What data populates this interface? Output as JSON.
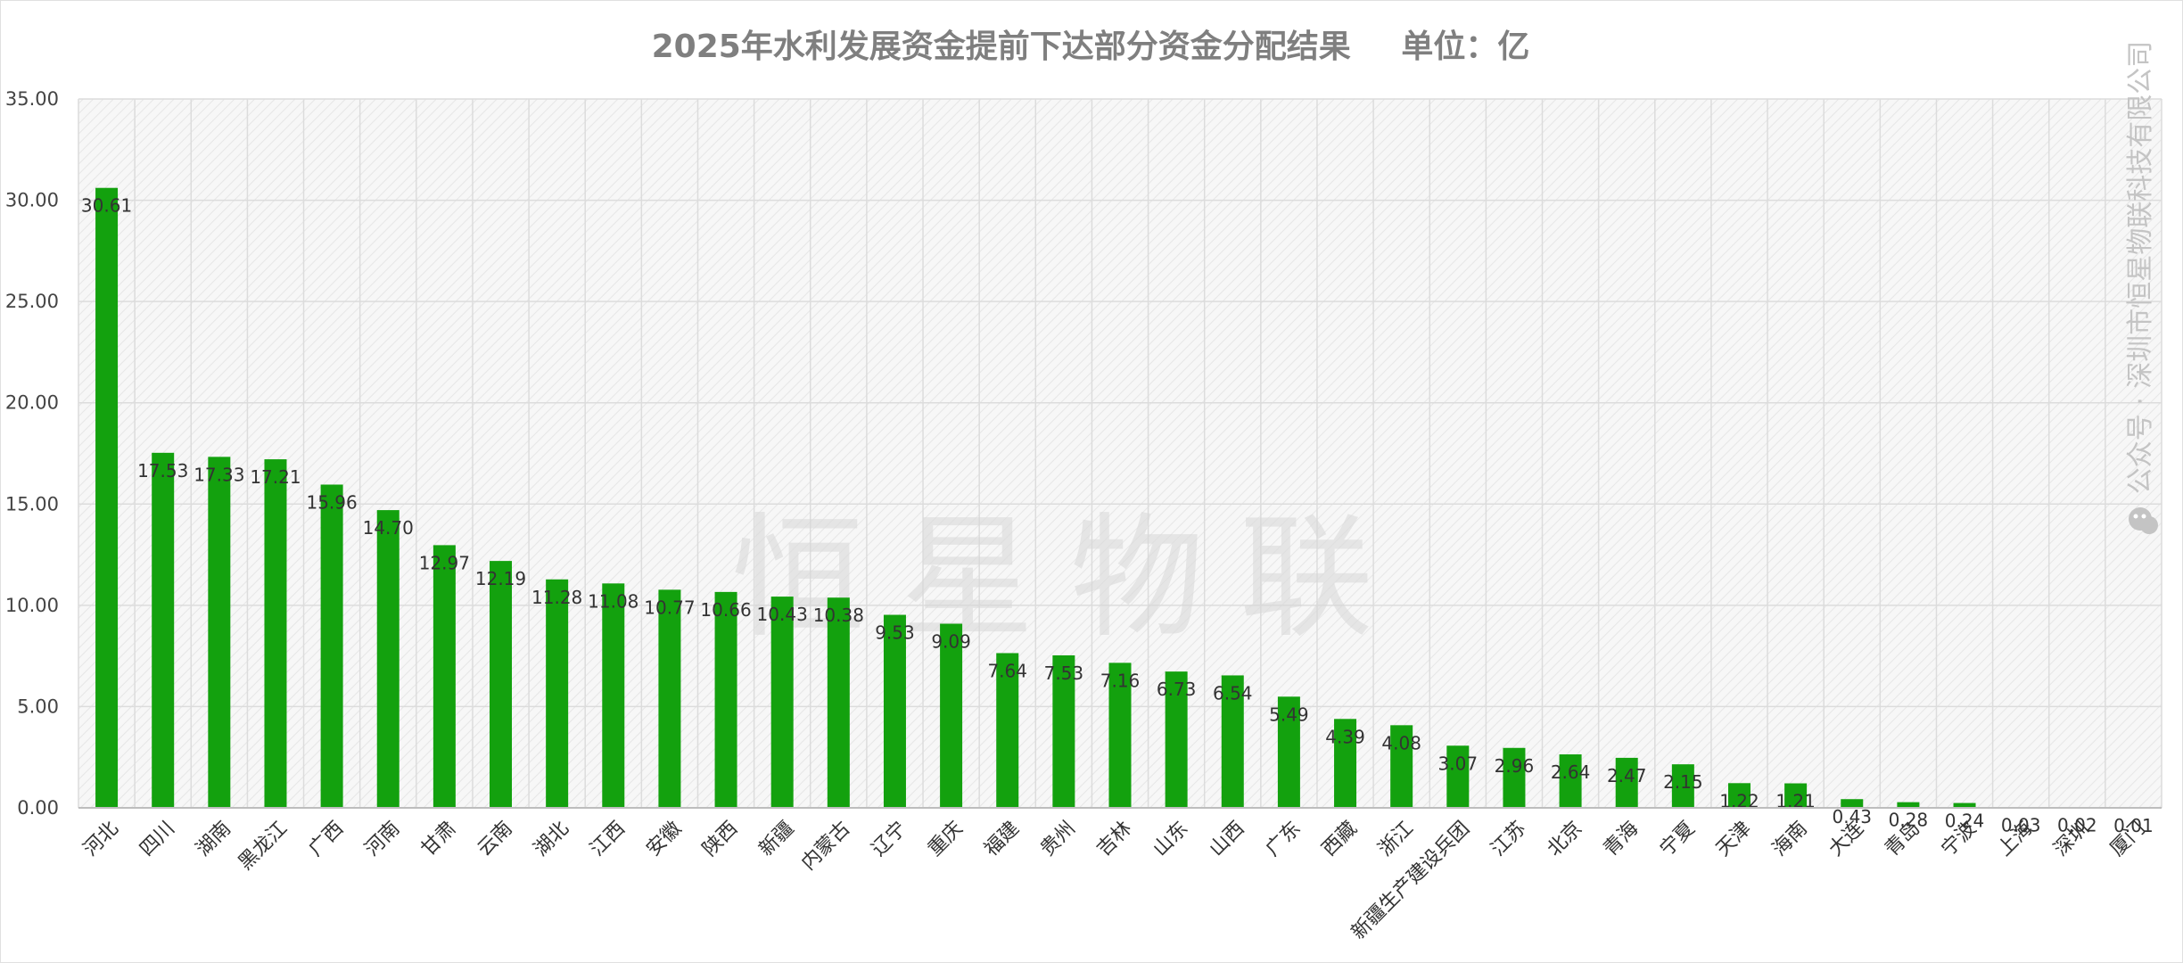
{
  "chart_data": {
    "type": "bar",
    "title": "2025年水利发展资金提前下达部分资金分配结果",
    "unit_label": "单位：亿",
    "xlabel": "",
    "ylabel": "",
    "ylim": [
      0,
      35
    ],
    "yticks": [
      "0.00",
      "5.00",
      "10.00",
      "15.00",
      "20.00",
      "25.00",
      "30.00",
      "35.00"
    ],
    "grid": true,
    "legend": "none",
    "bar_color": "#13a10e",
    "categories": [
      "河北",
      "四川",
      "湖南",
      "黑龙江",
      "广西",
      "河南",
      "甘肃",
      "云南",
      "湖北",
      "江西",
      "安徽",
      "陕西",
      "新疆",
      "内蒙古",
      "辽宁",
      "重庆",
      "福建",
      "贵州",
      "吉林",
      "山东",
      "山西",
      "广东",
      "西藏",
      "浙江",
      "新疆生产建设兵团",
      "江苏",
      "北京",
      "青海",
      "宁夏",
      "天津",
      "海南",
      "大连",
      "青岛",
      "宁波",
      "上海",
      "深圳",
      "厦门"
    ],
    "values": [
      30.61,
      17.53,
      17.33,
      17.21,
      15.96,
      14.7,
      12.97,
      12.19,
      11.28,
      11.08,
      10.77,
      10.66,
      10.43,
      10.38,
      9.53,
      9.09,
      7.64,
      7.53,
      7.16,
      6.73,
      6.54,
      5.49,
      4.39,
      4.08,
      3.07,
      2.96,
      2.64,
      2.47,
      2.15,
      1.22,
      1.21,
      0.43,
      0.28,
      0.24,
      0.03,
      0.02,
      0.01
    ],
    "value_labels": [
      "30.61",
      "17.53",
      "17.33",
      "17.21",
      "15.96",
      "14.70",
      "12.97",
      "12.19",
      "11.28",
      "11.08",
      "10.77",
      "10.66",
      "10.43",
      "10.38",
      "9.53",
      "9.09",
      "7.64",
      "7.53",
      "7.16",
      "6.73",
      "6.54",
      "5.49",
      "4.39",
      "4.08",
      "3.07",
      "2.96",
      "2.64",
      "2.47",
      "2.15",
      "1.22",
      "1.21",
      "0.43",
      "0.28",
      "0.24",
      "0.03",
      "0.02",
      "0.01"
    ]
  },
  "watermark": {
    "side_text": "公众号 · 深圳市恒星物联科技有限公司",
    "center_text": "恒星物联"
  }
}
